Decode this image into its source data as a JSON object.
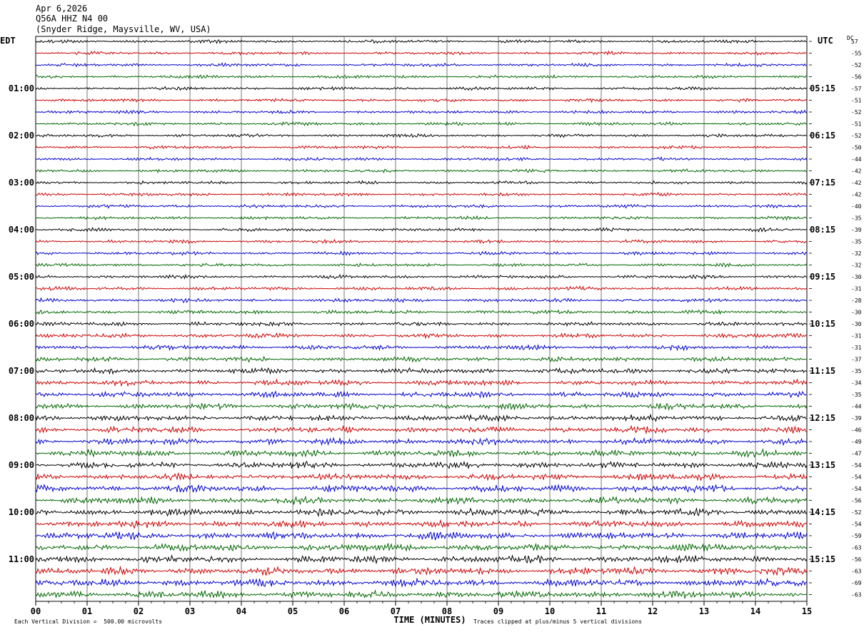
{
  "header": {
    "date": "Apr 6,2026",
    "station": "Q56A HHZ N4 00",
    "location": "(Snyder Ridge, Maysville, WV, USA)"
  },
  "left_axis_title": "EDT",
  "right_axis_title": "UTC",
  "dc_label": "DC",
  "footer": {
    "scale": "Each Vertical Division =  500.00 microvolts",
    "clip": "Traces clipped at plus/minus 5 vertical divisions"
  },
  "chart_data": {
    "type": "line",
    "title": "",
    "xlabel": "TIME (MINUTES)",
    "xlim": [
      0,
      15
    ],
    "x_ticks": [
      "00",
      "01",
      "02",
      "03",
      "04",
      "05",
      "06",
      "07",
      "08",
      "09",
      "10",
      "11",
      "12",
      "13",
      "14",
      "15"
    ],
    "trace_count": 48,
    "trace_minutes": 15,
    "colors": [
      "#000000",
      "#cc0000",
      "#0000cc",
      "#006600"
    ],
    "left_hour_labels": [
      "01:00",
      "02:00",
      "03:00",
      "04:00",
      "05:00",
      "06:00",
      "07:00",
      "08:00",
      "09:00",
      "10:00",
      "11:00"
    ],
    "right_hour_labels": [
      "05:15",
      "06:15",
      "07:15",
      "08:15",
      "09:15",
      "10:15",
      "11:15",
      "12:15",
      "13:15",
      "14:15",
      "15:15"
    ],
    "dc_offsets": [
      "57",
      "-55",
      "-52",
      "-56",
      "-57",
      "-51",
      "-52",
      "-51",
      "-52",
      "-50",
      "-44",
      "-42",
      "-42",
      "-42",
      "-40",
      "-35",
      "-39",
      "-35",
      "-32",
      "-32",
      "-30",
      "-31",
      "-28",
      "-30",
      "-30",
      "-31",
      "-31",
      "-37",
      "-35",
      "-34",
      "-35",
      "-44",
      "-39",
      "-46",
      "-49",
      "-47",
      "-54",
      "-54",
      "-54",
      "-56",
      "-52",
      "-54",
      "-59",
      "-63",
      "-56",
      "-63",
      "-69",
      "-63"
    ],
    "trace_amplitude": [
      1,
      1,
      1,
      1,
      1,
      1,
      1,
      1,
      1,
      1,
      1,
      1,
      1,
      1,
      1,
      1,
      1,
      1,
      1,
      1,
      1.1,
      1.1,
      1.2,
      1.2,
      1.3,
      1.3,
      1.4,
      1.5,
      1.7,
      1.7,
      1.8,
      1.8,
      1.9,
      2.0,
      2.0,
      2.1,
      2.1,
      2.1,
      2.2,
      2.2,
      2.2,
      2.2,
      2.3,
      2.3,
      2.3,
      2.3,
      2.3,
      2.3
    ]
  }
}
